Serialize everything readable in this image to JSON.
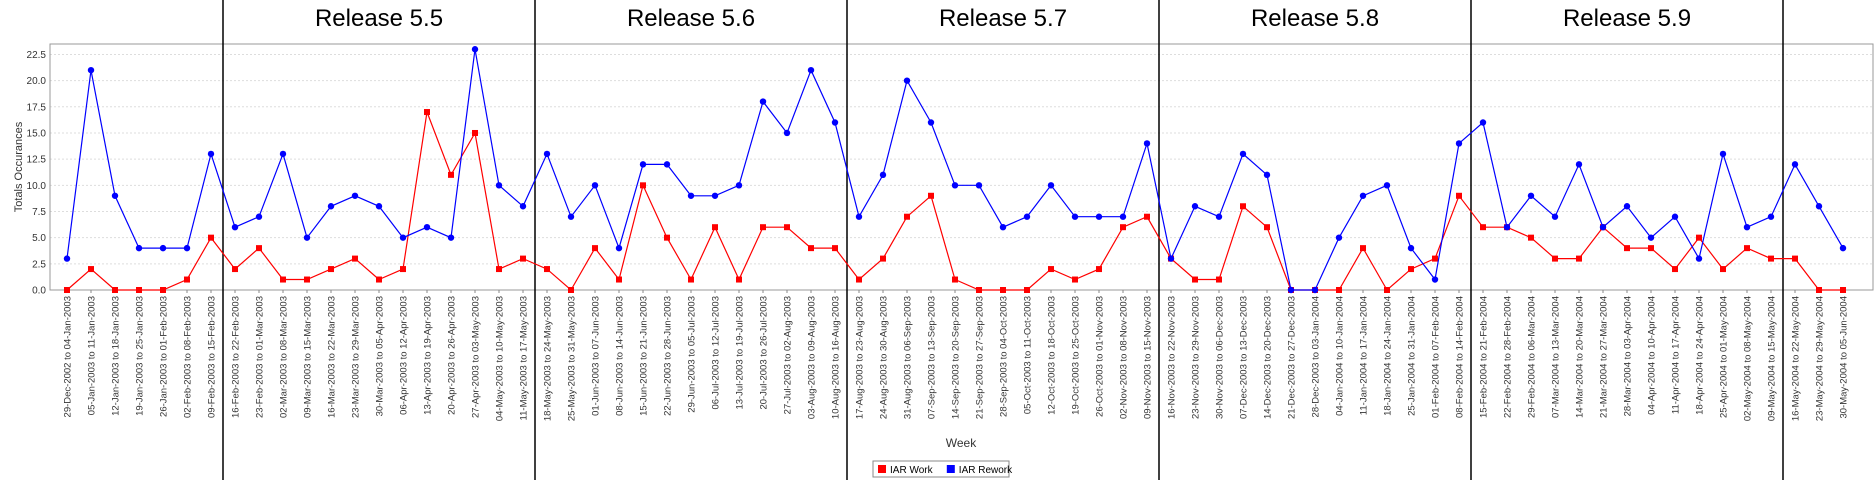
{
  "chart_data": {
    "type": "line",
    "xlabel": "Week",
    "ylabel": "Totals Occurances",
    "ylim": [
      0,
      23.5
    ],
    "yticks": [
      "0.0",
      "2.5",
      "5.0",
      "7.5",
      "10.0",
      "12.5",
      "15.0",
      "17.5",
      "20.0",
      "22.5"
    ],
    "grid": true,
    "legend_position": "bottom-center",
    "categories": [
      "29-Dec-2002 to 04-Jan-2003",
      "05-Jan-2003 to 11-Jan-2003",
      "12-Jan-2003 to 18-Jan-2003",
      "19-Jan-2003 to 25-Jan-2003",
      "26-Jan-2003 to 01-Feb-2003",
      "02-Feb-2003 to 08-Feb-2003",
      "09-Feb-2003 to 15-Feb-2003",
      "16-Feb-2003 to 22-Feb-2003",
      "23-Feb-2003 to 01-Mar-2003",
      "02-Mar-2003 to 08-Mar-2003",
      "09-Mar-2003 to 15-Mar-2003",
      "16-Mar-2003 to 22-Mar-2003",
      "23-Mar-2003 to 29-Mar-2003",
      "30-Mar-2003 to 05-Apr-2003",
      "06-Apr-2003 to 12-Apr-2003",
      "13-Apr-2003 to 19-Apr-2003",
      "20-Apr-2003 to 26-Apr-2003",
      "27-Apr-2003 to 03-May-2003",
      "04-May-2003 to 10-May-2003",
      "11-May-2003 to 17-May-2003",
      "18-May-2003 to 24-May-2003",
      "25-May-2003 to 31-May-2003",
      "01-Jun-2003 to 07-Jun-2003",
      "08-Jun-2003 to 14-Jun-2003",
      "15-Jun-2003 to 21-Jun-2003",
      "22-Jun-2003 to 28-Jun-2003",
      "29-Jun-2003 to 05-Jul-2003",
      "06-Jul-2003 to 12-Jul-2003",
      "13-Jul-2003 to 19-Jul-2003",
      "20-Jul-2003 to 26-Jul-2003",
      "27-Jul-2003 to 02-Aug-2003",
      "03-Aug-2003 to 09-Aug-2003",
      "10-Aug-2003 to 16-Aug-2003",
      "17-Aug-2003 to 23-Aug-2003",
      "24-Aug-2003 to 30-Aug-2003",
      "31-Aug-2003 to 06-Sep-2003",
      "07-Sep-2003 to 13-Sep-2003",
      "14-Sep-2003 to 20-Sep-2003",
      "21-Sep-2003 to 27-Sep-2003",
      "28-Sep-2003 to 04-Oct-2003",
      "05-Oct-2003 to 11-Oct-2003",
      "12-Oct-2003 to 18-Oct-2003",
      "19-Oct-2003 to 25-Oct-2003",
      "26-Oct-2003 to 01-Nov-2003",
      "02-Nov-2003 to 08-Nov-2003",
      "09-Nov-2003 to 15-Nov-2003",
      "16-Nov-2003 to 22-Nov-2003",
      "23-Nov-2003 to 29-Nov-2003",
      "30-Nov-2003 to 06-Dec-2003",
      "07-Dec-2003 to 13-Dec-2003",
      "14-Dec-2003 to 20-Dec-2003",
      "21-Dec-2003 to 27-Dec-2003",
      "28-Dec-2003 to 03-Jan-2004",
      "04-Jan-2004 to 10-Jan-2004",
      "11-Jan-2004 to 17-Jan-2004",
      "18-Jan-2004 to 24-Jan-2004",
      "25-Jan-2004 to 31-Jan-2004",
      "01-Feb-2004 to 07-Feb-2004",
      "08-Feb-2004 to 14-Feb-2004",
      "15-Feb-2004 to 21-Feb-2004",
      "22-Feb-2004 to 28-Feb-2004",
      "29-Feb-2004 to 06-Mar-2004",
      "07-Mar-2004 to 13-Mar-2004",
      "14-Mar-2004 to 20-Mar-2004",
      "21-Mar-2004 to 27-Mar-2004",
      "28-Mar-2004 to 03-Apr-2004",
      "04-Apr-2004 to 10-Apr-2004",
      "11-Apr-2004 to 17-Apr-2004",
      "18-Apr-2004 to 24-Apr-2004",
      "25-Apr-2004 to 01-May-2004",
      "02-May-2004 to 08-May-2004",
      "09-May-2004 to 15-May-2004",
      "16-May-2004 to 22-May-2004",
      "23-May-2004 to 29-May-2004",
      "30-May-2004 to 05-Jun-2004"
    ],
    "releases": [
      {
        "label": "Release 5.5",
        "start_index": 7,
        "end_index": 19
      },
      {
        "label": "Release 5.6",
        "start_index": 20,
        "end_index": 32
      },
      {
        "label": "Release 5.7",
        "start_index": 33,
        "end_index": 45
      },
      {
        "label": "Release 5.8",
        "start_index": 46,
        "end_index": 58
      },
      {
        "label": "Release 5.9",
        "start_index": 59,
        "end_index": 71
      }
    ],
    "release_boundaries_after_index": [
      6,
      19,
      32,
      45,
      58,
      71
    ],
    "series": [
      {
        "name": "IAR Work",
        "color": "#ff0000",
        "marker": "square",
        "values": [
          0,
          2,
          0,
          0,
          0,
          1,
          5,
          2,
          4,
          1,
          1,
          2,
          3,
          1,
          2,
          17,
          11,
          15,
          2,
          3,
          2,
          0,
          4,
          1,
          10,
          5,
          1,
          6,
          1,
          6,
          6,
          4,
          4,
          1,
          3,
          7,
          9,
          1,
          0,
          0,
          0,
          2,
          1,
          2,
          6,
          7,
          3,
          1,
          1,
          8,
          6,
          0,
          0,
          0,
          4,
          0,
          2,
          3,
          9,
          6,
          6,
          5,
          3,
          3,
          6,
          4,
          4,
          2,
          5,
          2,
          4,
          3,
          3,
          0,
          0
        ]
      },
      {
        "name": "IAR Rework",
        "color": "#0000ff",
        "marker": "circle",
        "values": [
          3,
          21,
          9,
          4,
          4,
          4,
          13,
          6,
          7,
          13,
          5,
          8,
          9,
          8,
          5,
          6,
          5,
          23,
          10,
          8,
          13,
          7,
          10,
          4,
          12,
          12,
          9,
          9,
          10,
          18,
          15,
          21,
          16,
          7,
          11,
          20,
          16,
          10,
          10,
          6,
          7,
          10,
          7,
          7,
          7,
          14,
          3,
          8,
          7,
          13,
          11,
          0,
          0,
          5,
          9,
          10,
          4,
          1,
          14,
          16,
          6,
          9,
          7,
          12,
          6,
          8,
          5,
          7,
          3,
          13,
          6,
          7,
          12,
          8,
          4
        ]
      }
    ]
  }
}
